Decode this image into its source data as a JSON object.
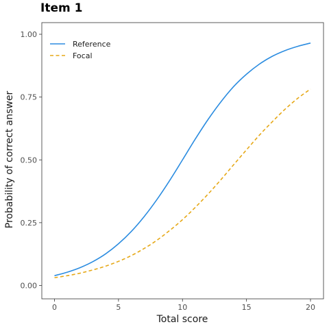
{
  "chart_data": {
    "type": "line",
    "title": "Item 1",
    "xlabel": "Total score",
    "ylabel": "Probability of correct answer",
    "xlim": [
      0,
      20
    ],
    "ylim": [
      0,
      1
    ],
    "x_ticks": [
      0,
      5,
      10,
      15,
      20
    ],
    "x_tick_labels": [
      "0",
      "5",
      "10",
      "15",
      "20"
    ],
    "y_ticks": [
      0,
      0.25,
      0.5,
      0.75,
      1
    ],
    "y_tick_labels": [
      "0.00",
      "0.25",
      "0.50",
      "0.75",
      "1.00"
    ],
    "grid": false,
    "legend_position": "top-left",
    "x": [
      0,
      1,
      2,
      3,
      4,
      5,
      6,
      7,
      8,
      9,
      10,
      11,
      12,
      13,
      14,
      15,
      16,
      17,
      18,
      19,
      20
    ],
    "series": [
      {
        "name": "Reference",
        "color": "#2b8ce0",
        "dash": "solid",
        "values": [
          0.039,
          0.053,
          0.071,
          0.095,
          0.126,
          0.166,
          0.215,
          0.274,
          0.342,
          0.418,
          0.5,
          0.583,
          0.661,
          0.731,
          0.792,
          0.841,
          0.881,
          0.912,
          0.935,
          0.952,
          0.965
        ]
      },
      {
        "name": "Focal",
        "color": "#e6a817",
        "dash": "dashed",
        "values": [
          0.031,
          0.039,
          0.049,
          0.062,
          0.077,
          0.096,
          0.119,
          0.147,
          0.18,
          0.219,
          0.262,
          0.311,
          0.364,
          0.421,
          0.481,
          0.54,
          0.598,
          0.651,
          0.701,
          0.745,
          0.782
        ]
      }
    ]
  }
}
